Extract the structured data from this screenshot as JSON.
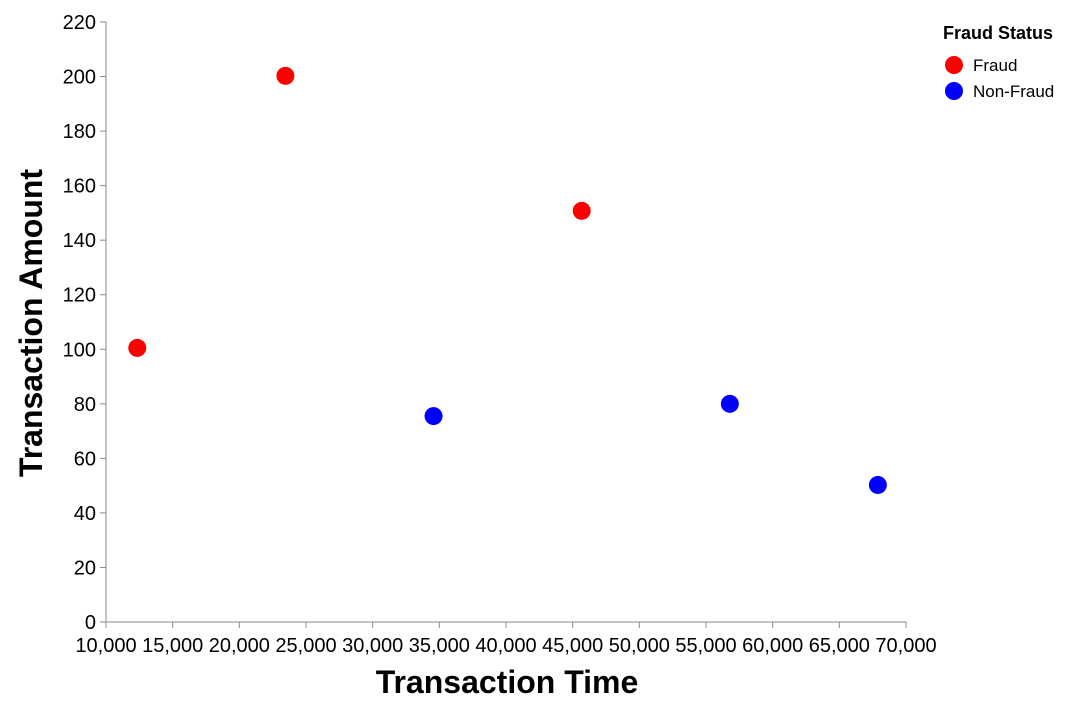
{
  "chart_data": {
    "type": "scatter",
    "xlabel": "Transaction Time",
    "ylabel": "Transaction Amount",
    "xlim": [
      10000,
      70000
    ],
    "ylim": [
      0,
      220
    ],
    "x_ticks": [
      10000,
      15000,
      20000,
      25000,
      30000,
      35000,
      40000,
      45000,
      50000,
      55000,
      60000,
      65000,
      70000
    ],
    "y_ticks": [
      0,
      20,
      40,
      60,
      80,
      100,
      120,
      140,
      160,
      180,
      200,
      220
    ],
    "grid": false,
    "legend": {
      "title": "Fraud Status",
      "placement": "top-right"
    },
    "series": [
      {
        "name": "Fraud",
        "color": "#ff0000",
        "points": [
          {
            "x": 12345,
            "y": 100.5
          },
          {
            "x": 23456,
            "y": 200.25
          },
          {
            "x": 45678,
            "y": 150.75
          }
        ]
      },
      {
        "name": "Non-Fraud",
        "color": "#0000ff",
        "points": [
          {
            "x": 34567,
            "y": 75.5
          },
          {
            "x": 56789,
            "y": 80.0
          },
          {
            "x": 67890,
            "y": 50.25
          }
        ]
      }
    ]
  }
}
